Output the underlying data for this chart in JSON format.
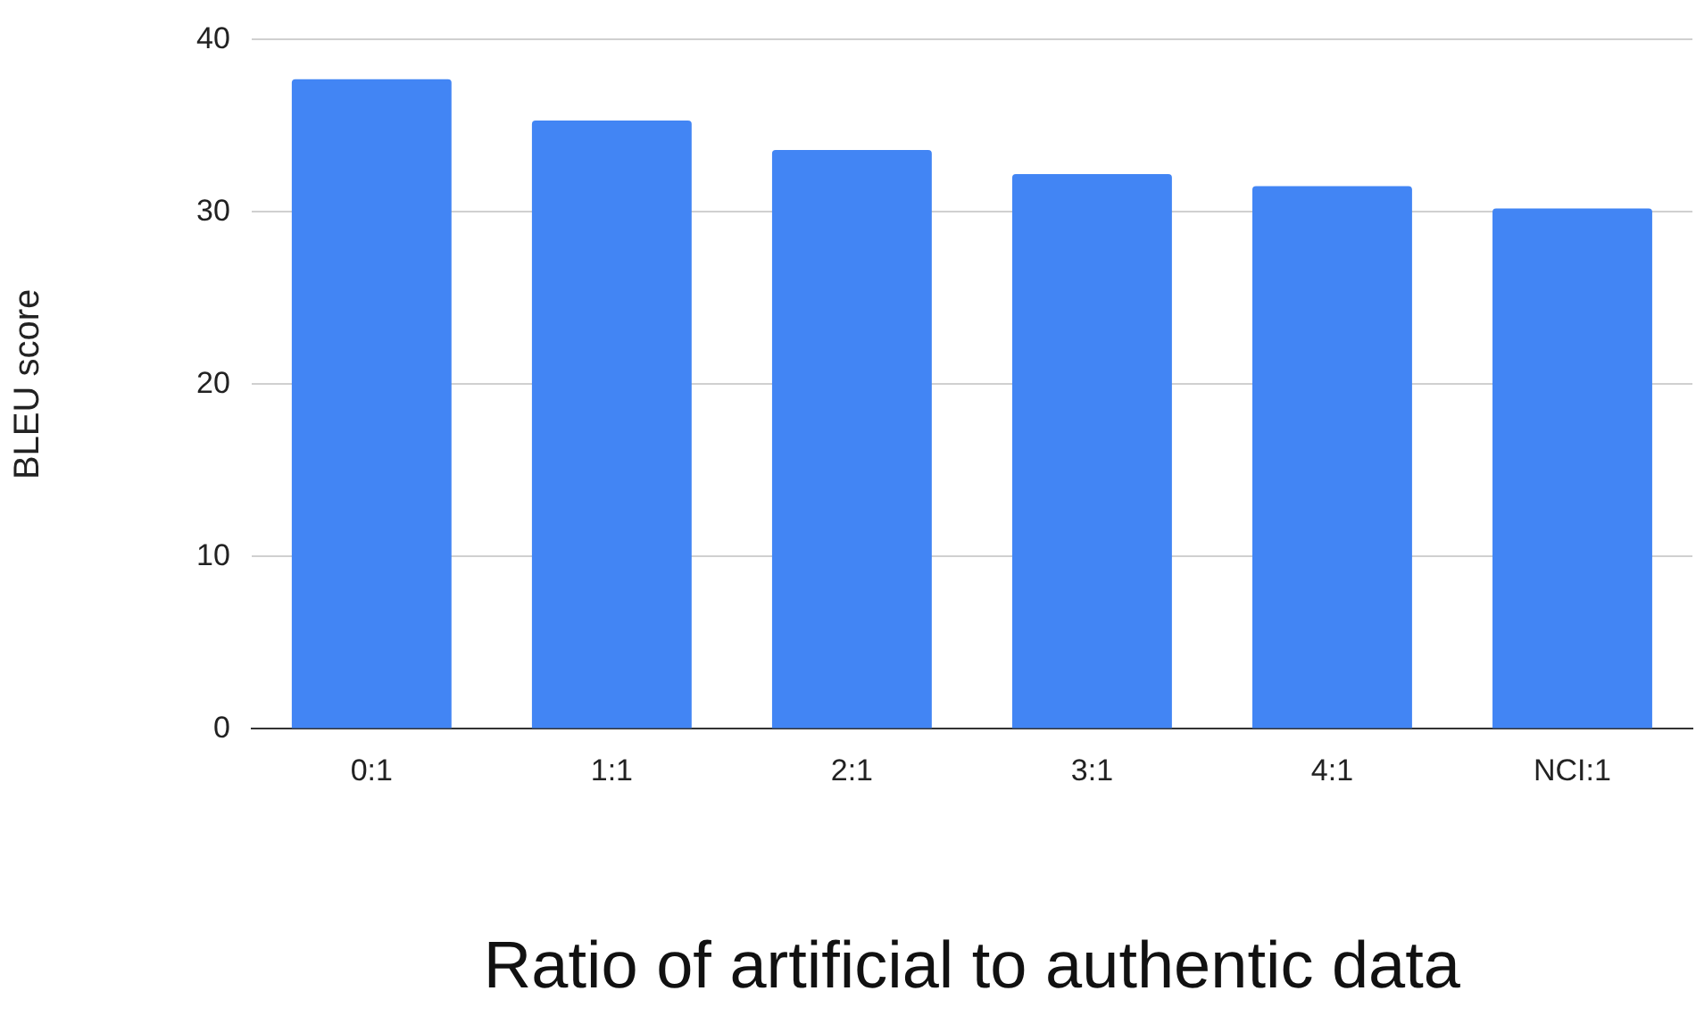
{
  "chart_data": {
    "type": "bar",
    "xlabel": "Ratio of artificial to authentic data",
    "ylabel": "BLEU score",
    "categories": [
      "0:1",
      "1:1",
      "2:1",
      "3:1",
      "4:1",
      "NCI:1"
    ],
    "values": [
      37.7,
      35.3,
      33.6,
      32.2,
      31.5,
      30.2
    ],
    "color": "#4285f4",
    "ylim": [
      0,
      40
    ],
    "yticks": [
      0,
      10,
      20,
      30,
      40
    ],
    "grid": "y",
    "legend": false
  }
}
